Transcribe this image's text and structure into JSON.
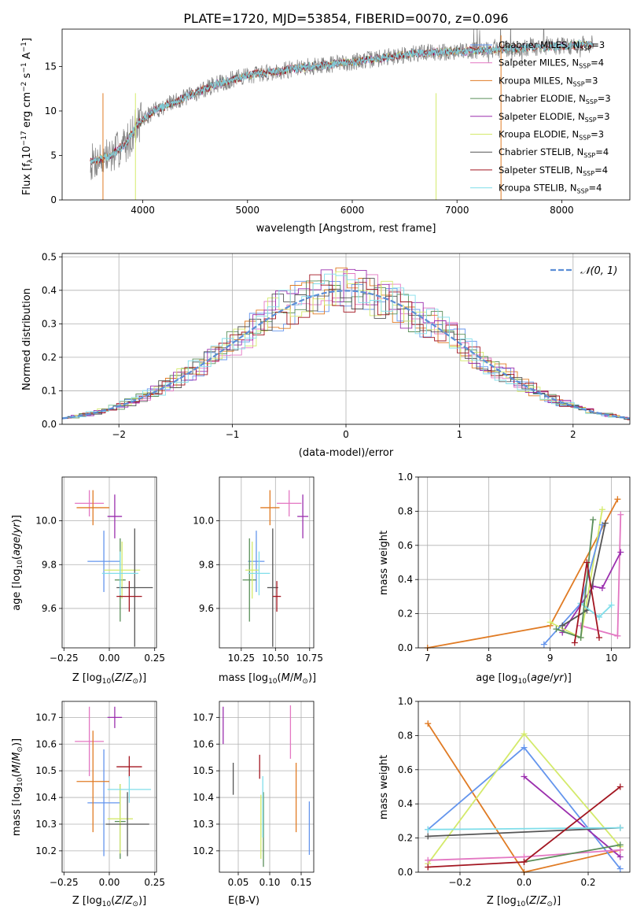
{
  "figure_title": "PLATE=1720, MJD=53854, FIBERID=0070, z=0.096",
  "colors": {
    "c0": "#6495ed",
    "c1": "#dd8452",
    "c2": "#e07b24",
    "c3": "#5a8f5a",
    "c4": "#9b2fae",
    "c5": "#d4ea6b",
    "c6": "#555555",
    "c7": "#a31621",
    "c8": "#80deea",
    "data": "#808080",
    "gauss": "#5b8ed6",
    "pink": "#e377c2",
    "green": "#6a9f3a"
  },
  "chart_data": [
    {
      "id": "spectrum",
      "type": "line",
      "xlabel": "wavelength [Angstrom, rest frame]",
      "ylabel": "Flux [f_λ10^-17 erg cm^-2 s^-1 A^-1]",
      "xlim": [
        3230,
        8650
      ],
      "ylim": [
        0,
        19.2
      ],
      "xticks": [
        4000,
        5000,
        6000,
        7000,
        8000
      ],
      "yticks": [
        0,
        5,
        10,
        15
      ],
      "legend_position": "top-right",
      "legend": [
        {
          "label": "Chabrier MILES, N_SSP=3",
          "color": "#6495ed"
        },
        {
          "label": "Salpeter MILES, N_SSP=4",
          "color": "#e377c2"
        },
        {
          "label": "Kroupa MILES, N_SSP=3",
          "color": "#e07b24"
        },
        {
          "label": "Chabrier ELODIE, N_SSP=3",
          "color": "#5a8f5a"
        },
        {
          "label": "Salpeter ELODIE, N_SSP=3",
          "color": "#9b2fae"
        },
        {
          "label": "Kroupa ELODIE, N_SSP=3",
          "color": "#d4ea6b"
        },
        {
          "label": "Chabrier STELIB, N_SSP=4",
          "color": "#555555"
        },
        {
          "label": "Salpeter STELIB, N_SSP=4",
          "color": "#a31621"
        },
        {
          "label": "Kroupa STELIB, N_SSP=4",
          "color": "#80deea"
        }
      ],
      "continuum": [
        [
          3500,
          4.2
        ],
        [
          3700,
          5.0
        ],
        [
          3850,
          6.5
        ],
        [
          3950,
          8.5
        ],
        [
          4100,
          10.0
        ],
        [
          4300,
          11.0
        ],
        [
          4500,
          12.0
        ],
        [
          4700,
          13.0
        ],
        [
          5000,
          14.0
        ],
        [
          5300,
          14.5
        ],
        [
          5600,
          15.0
        ],
        [
          6000,
          15.5
        ],
        [
          6300,
          16.0
        ],
        [
          6600,
          16.5
        ],
        [
          7000,
          16.7
        ],
        [
          7500,
          17.0
        ],
        [
          8000,
          17.3
        ],
        [
          8300,
          17.5
        ]
      ]
    },
    {
      "id": "residuals",
      "type": "bar",
      "xlabel": "(data-model)/error",
      "ylabel": "Normed distribution",
      "xlim": [
        -2.5,
        2.5
      ],
      "ylim": [
        0,
        0.51
      ],
      "xticks": [
        -2,
        -1,
        0,
        1,
        2
      ],
      "yticks": [
        0.0,
        0.1,
        0.2,
        0.3,
        0.4,
        0.5
      ],
      "grid": true,
      "legend": [
        {
          "label": "𝒩(0, 1)",
          "color": "#5b8ed6"
        }
      ],
      "legend_position": "top-right",
      "bin_width": 0.1
    },
    {
      "id": "age_vs_Z",
      "type": "scatter",
      "xlabel": "Z [log10(Z/Z☉)]",
      "ylabel": "age [log10(age/yr)]",
      "xlim": [
        -0.26,
        0.26
      ],
      "ylim": [
        9.42,
        10.2
      ],
      "xticks": [
        -0.25,
        0.0,
        0.25
      ],
      "yticks": [
        9.6,
        9.8,
        10.0
      ],
      "grid": true,
      "points": [
        {
          "x": -0.03,
          "y": 9.815,
          "xerr": 0.09,
          "yerr": 0.14,
          "color": "#6495ed"
        },
        {
          "x": -0.11,
          "y": 10.08,
          "xerr": 0.08,
          "yerr": 0.06,
          "color": "#e377c2"
        },
        {
          "x": -0.09,
          "y": 10.06,
          "xerr": 0.09,
          "yerr": 0.08,
          "color": "#e07b24"
        },
        {
          "x": 0.06,
          "y": 9.73,
          "xerr": 0.03,
          "yerr": 0.19,
          "color": "#5a8f5a"
        },
        {
          "x": 0.03,
          "y": 10.02,
          "xerr": 0.04,
          "yerr": 0.1,
          "color": "#9b2fae"
        },
        {
          "x": 0.07,
          "y": 9.775,
          "xerr": 0.1,
          "yerr": 0.13,
          "color": "#d4ea6b"
        },
        {
          "x": 0.14,
          "y": 9.695,
          "xerr": 0.1,
          "yerr": 0.27,
          "color": "#555555"
        },
        {
          "x": 0.11,
          "y": 9.655,
          "xerr": 0.07,
          "yerr": 0.07,
          "color": "#a31621"
        },
        {
          "x": 0.06,
          "y": 9.76,
          "xerr": 0.1,
          "yerr": 0.1,
          "color": "#80deea"
        }
      ]
    },
    {
      "id": "age_vs_mass",
      "type": "scatter",
      "xlabel": "mass [log10(M/M☉)]",
      "ylabel": "",
      "xlim": [
        10.09,
        10.78
      ],
      "ylim": [
        9.42,
        10.2
      ],
      "xticks": [
        10.25,
        10.5,
        10.75
      ],
      "yticks": [
        9.6,
        9.8,
        10.0
      ],
      "grid": true,
      "points": [
        {
          "x": 10.36,
          "y": 9.815,
          "xerr": 0.06,
          "yerr": 0.14,
          "color": "#6495ed"
        },
        {
          "x": 10.6,
          "y": 10.08,
          "xerr": 0.09,
          "yerr": 0.06,
          "color": "#e377c2"
        },
        {
          "x": 10.46,
          "y": 10.06,
          "xerr": 0.07,
          "yerr": 0.08,
          "color": "#e07b24"
        },
        {
          "x": 10.31,
          "y": 9.73,
          "xerr": 0.05,
          "yerr": 0.19,
          "color": "#5a8f5a"
        },
        {
          "x": 10.7,
          "y": 10.02,
          "xerr": 0.04,
          "yerr": 0.1,
          "color": "#9b2fae"
        },
        {
          "x": 10.33,
          "y": 9.775,
          "xerr": 0.05,
          "yerr": 0.13,
          "color": "#d4ea6b"
        },
        {
          "x": 10.48,
          "y": 9.695,
          "xerr": 0.04,
          "yerr": 0.27,
          "color": "#555555"
        },
        {
          "x": 10.51,
          "y": 9.655,
          "xerr": 0.03,
          "yerr": 0.07,
          "color": "#a31621"
        },
        {
          "x": 10.38,
          "y": 9.76,
          "xerr": 0.08,
          "yerr": 0.1,
          "color": "#80deea"
        }
      ]
    },
    {
      "id": "weight_vs_age",
      "type": "line",
      "xlabel": "age [log10(age/yr)]",
      "ylabel": "mass weight",
      "xlim": [
        6.85,
        10.3
      ],
      "ylim": [
        0,
        1.0
      ],
      "xticks": [
        7,
        8,
        9,
        10
      ],
      "yticks": [
        0.0,
        0.2,
        0.4,
        0.6,
        0.8,
        1.0
      ],
      "grid": true,
      "series": [
        {
          "color": "#e07b24",
          "x": [
            7.0,
            9.0,
            10.1
          ],
          "y": [
            0.0,
            0.13,
            0.87
          ]
        },
        {
          "color": "#e377c2",
          "x": [
            9.5,
            10.1,
            10.15
          ],
          "y": [
            0.13,
            0.07,
            0.78
          ]
        },
        {
          "color": "#9b2fae",
          "x": [
            9.2,
            9.7,
            9.85,
            10.15
          ],
          "y": [
            0.09,
            0.36,
            0.35,
            0.56
          ]
        },
        {
          "color": "#d4ea6b",
          "x": [
            9.0,
            9.5,
            9.85
          ],
          "y": [
            0.15,
            0.06,
            0.81
          ]
        },
        {
          "color": "#6495ed",
          "x": [
            8.9,
            9.5,
            9.85
          ],
          "y": [
            0.02,
            0.26,
            0.72
          ]
        },
        {
          "color": "#555555",
          "x": [
            9.2,
            9.6,
            9.9
          ],
          "y": [
            0.13,
            0.22,
            0.73
          ]
        },
        {
          "color": "#80deea",
          "x": [
            9.5,
            9.8,
            10.0
          ],
          "y": [
            0.26,
            0.18,
            0.25
          ]
        },
        {
          "color": "#5a8f5a",
          "x": [
            9.1,
            9.5,
            9.7
          ],
          "y": [
            0.11,
            0.06,
            0.75
          ]
        },
        {
          "color": "#a31621",
          "x": [
            9.4,
            9.6,
            9.8
          ],
          "y": [
            0.03,
            0.5,
            0.06
          ]
        }
      ]
    },
    {
      "id": "mass_vs_Z",
      "type": "scatter",
      "xlabel": "Z [log10(Z/Z☉)]",
      "ylabel": "mass [log10(M/M☉)]",
      "xlim": [
        -0.26,
        0.26
      ],
      "ylim": [
        10.12,
        10.76
      ],
      "xticks": [
        -0.25,
        0.0,
        0.25
      ],
      "yticks": [
        10.2,
        10.3,
        10.4,
        10.5,
        10.6,
        10.7
      ],
      "grid": true,
      "points": [
        {
          "x": -0.03,
          "y": 10.38,
          "xerr": 0.09,
          "yerr": 0.2,
          "color": "#6495ed"
        },
        {
          "x": -0.11,
          "y": 10.61,
          "xerr": 0.08,
          "yerr": 0.13,
          "color": "#e377c2"
        },
        {
          "x": -0.09,
          "y": 10.46,
          "xerr": 0.09,
          "yerr": 0.19,
          "color": "#e07b24"
        },
        {
          "x": 0.06,
          "y": 10.31,
          "xerr": 0.03,
          "yerr": 0.14,
          "color": "#5a8f5a"
        },
        {
          "x": 0.03,
          "y": 10.7,
          "xerr": 0.04,
          "yerr": 0.04,
          "color": "#9b2fae"
        },
        {
          "x": 0.06,
          "y": 10.32,
          "xerr": 0.07,
          "yerr": 0.13,
          "color": "#d4ea6b"
        },
        {
          "x": 0.1,
          "y": 10.3,
          "xerr": 0.12,
          "yerr": 0.12,
          "color": "#555555"
        },
        {
          "x": 0.11,
          "y": 10.515,
          "xerr": 0.07,
          "yerr": 0.04,
          "color": "#a31621"
        },
        {
          "x": 0.11,
          "y": 10.43,
          "xerr": 0.12,
          "yerr": 0.05,
          "color": "#80deea"
        }
      ]
    },
    {
      "id": "mass_vs_EBV",
      "type": "scatter",
      "xlabel": "E(B-V)",
      "ylabel": "",
      "xlim": [
        0.02,
        0.17
      ],
      "ylim": [
        10.12,
        10.76
      ],
      "xticks": [
        0.05,
        0.1,
        0.15
      ],
      "yticks": [
        10.2,
        10.3,
        10.4,
        10.5,
        10.6,
        10.7
      ],
      "grid": true,
      "points": [
        {
          "x": 0.163,
          "y": 10.285,
          "yerr": 0.1,
          "color": "#6495ed"
        },
        {
          "x": 0.133,
          "y": 10.645,
          "yerr": 0.1,
          "color": "#e377c2"
        },
        {
          "x": 0.142,
          "y": 10.4,
          "yerr": 0.13,
          "color": "#e07b24"
        },
        {
          "x": 0.09,
          "y": 10.28,
          "yerr": 0.14,
          "color": "#5a8f5a"
        },
        {
          "x": 0.026,
          "y": 10.67,
          "yerr": 0.07,
          "color": "#9b2fae"
        },
        {
          "x": 0.086,
          "y": 10.29,
          "yerr": 0.12,
          "color": "#d4ea6b"
        },
        {
          "x": 0.042,
          "y": 10.47,
          "yerr": 0.06,
          "color": "#555555"
        },
        {
          "x": 0.084,
          "y": 10.515,
          "yerr": 0.045,
          "color": "#a31621"
        },
        {
          "x": 0.089,
          "y": 10.365,
          "yerr": 0.115,
          "color": "#80deea"
        }
      ]
    },
    {
      "id": "weight_vs_Z",
      "type": "line",
      "xlabel": "Z [log10(Z/Z☉)]",
      "ylabel": "mass weight",
      "xlim": [
        -0.33,
        0.33
      ],
      "ylim": [
        0,
        1.0
      ],
      "xticks": [
        -0.2,
        0.0,
        0.2
      ],
      "yticks": [
        0.0,
        0.2,
        0.4,
        0.6,
        0.8,
        1.0
      ],
      "grid": true,
      "series": [
        {
          "color": "#e07b24",
          "x": [
            -0.3,
            0.0,
            0.3
          ],
          "y": [
            0.87,
            0.0,
            0.13
          ]
        },
        {
          "color": "#6495ed",
          "x": [
            -0.3,
            0.0,
            0.3
          ],
          "y": [
            0.25,
            0.73,
            0.02
          ]
        },
        {
          "color": "#d4ea6b",
          "x": [
            -0.3,
            0.0,
            0.3
          ],
          "y": [
            0.05,
            0.81,
            0.15
          ]
        },
        {
          "color": "#9b2fae",
          "x": [
            0.0,
            0.3
          ],
          "y": [
            0.56,
            0.09
          ]
        },
        {
          "color": "#e377c2",
          "x": [
            -0.3,
            0.0,
            0.3
          ],
          "y": [
            0.07,
            0.09,
            0.13
          ]
        },
        {
          "color": "#5a8f5a",
          "x": [
            0.0,
            0.3
          ],
          "y": [
            0.06,
            0.16
          ]
        },
        {
          "color": "#555555",
          "x": [
            -0.3,
            0.3
          ],
          "y": [
            0.21,
            0.26
          ]
        },
        {
          "color": "#80deea",
          "x": [
            -0.3,
            0.3
          ],
          "y": [
            0.25,
            0.26
          ]
        },
        {
          "color": "#a31621",
          "x": [
            -0.3,
            0.0,
            0.3
          ],
          "y": [
            0.03,
            0.06,
            0.5
          ]
        }
      ]
    }
  ]
}
